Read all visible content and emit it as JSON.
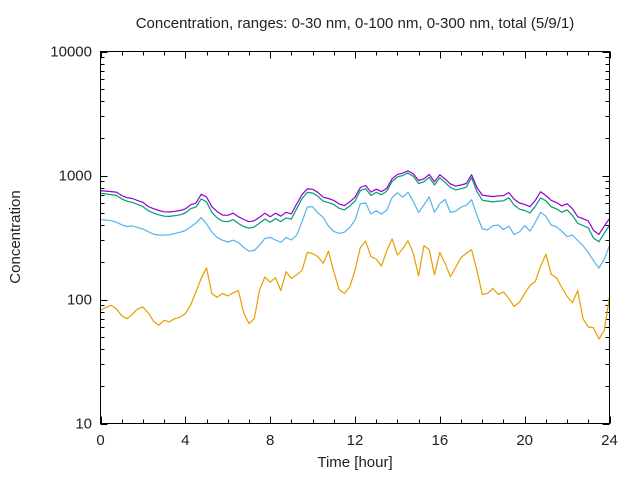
{
  "chart_data": {
    "type": "line",
    "title": "Concentration, ranges: 0-30 nm, 0-100 nm, 0-300 nm, total (5/9/1)",
    "xlabel": "Time [hour]",
    "ylabel": "Concentration",
    "xlim": [
      0,
      24
    ],
    "ylim": [
      10,
      10000
    ],
    "y_scale": "log",
    "grid": false,
    "legend": "none",
    "x_ticks_major": [
      0,
      4,
      8,
      12,
      16,
      20,
      24
    ],
    "x_minor_step": 1,
    "y_ticks_major": [
      10,
      100,
      1000,
      10000
    ],
    "x_start": 0,
    "x_step": 0.25,
    "series": [
      {
        "name": "0-30 nm",
        "color": "#e69f00",
        "values": [
          82,
          86,
          90,
          84,
          74,
          70,
          76,
          84,
          87,
          78,
          67,
          62,
          68,
          66,
          70,
          72,
          77,
          90,
          115,
          148,
          180,
          112,
          104,
          112,
          107,
          113,
          118,
          78,
          64,
          70,
          120,
          152,
          138,
          150,
          118,
          168,
          148,
          158,
          172,
          240,
          235,
          222,
          196,
          245,
          168,
          120,
          112,
          126,
          172,
          262,
          296,
          222,
          212,
          186,
          248,
          308,
          228,
          256,
          298,
          235,
          155,
          272,
          252,
          158,
          240,
          196,
          153,
          182,
          218,
          236,
          252,
          172,
          110,
          112,
          123,
          110,
          115,
          102,
          88,
          95,
          112,
          130,
          140,
          185,
          232,
          160,
          150,
          125,
          106,
          94,
          118,
          70,
          60,
          59,
          48,
          56,
          105
        ]
      },
      {
        "name": "0-100 nm",
        "color": "#56b4e9",
        "values": [
          440,
          438,
          432,
          420,
          400,
          388,
          393,
          380,
          370,
          352,
          337,
          331,
          330,
          333,
          340,
          348,
          360,
          385,
          413,
          458,
          408,
          350,
          316,
          301,
          291,
          301,
          288,
          263,
          245,
          249,
          274,
          311,
          317,
          302,
          289,
          317,
          302,
          331,
          423,
          556,
          560,
          498,
          460,
          390,
          354,
          341,
          349,
          381,
          436,
          592,
          600,
          489,
          519,
          489,
          526,
          662,
          726,
          668,
          733,
          618,
          503,
          577,
          672,
          505,
          592,
          641,
          503,
          516,
          556,
          574,
          638,
          478,
          371,
          364,
          394,
          399,
          367,
          391,
          334,
          351,
          394,
          356,
          419,
          505,
          470,
          399,
          386,
          355,
          321,
          331,
          299,
          271,
          239,
          205,
          179,
          211,
          272
        ]
      },
      {
        "name": "0-300 nm",
        "color": "#009e73",
        "values": [
          718,
          710,
          700,
          690,
          648,
          620,
          608,
          585,
          562,
          520,
          498,
          482,
          470,
          468,
          474,
          482,
          498,
          540,
          556,
          648,
          612,
          505,
          455,
          428,
          424,
          442,
          410,
          388,
          376,
          384,
          414,
          446,
          420,
          450,
          425,
          455,
          445,
          540,
          650,
          730,
          722,
          680,
          620,
          605,
          582,
          545,
          528,
          568,
          622,
          755,
          782,
          690,
          730,
          700,
          748,
          895,
          975,
          1000,
          1045,
          985,
          862,
          890,
          968,
          838,
          960,
          880,
          800,
          765,
          782,
          805,
          960,
          742,
          632,
          622,
          612,
          622,
          625,
          662,
          578,
          535,
          522,
          498,
          565,
          660,
          625,
          560,
          538,
          505,
          528,
          478,
          412,
          395,
          378,
          312,
          292,
          342,
          395
        ]
      },
      {
        "name": "total",
        "color": "#9400d3",
        "values": [
          755,
          748,
          742,
          735,
          690,
          662,
          652,
          628,
          608,
          562,
          540,
          522,
          510,
          508,
          514,
          522,
          538,
          580,
          598,
          705,
          672,
          560,
          512,
          480,
          478,
          497,
          465,
          442,
          424,
          432,
          460,
          497,
          465,
          497,
          470,
          505,
          490,
          590,
          700,
          780,
          775,
          730,
          668,
          652,
          630,
          590,
          572,
          612,
          668,
          800,
          830,
          735,
          775,
          742,
          790,
          940,
          1020,
          1045,
          1090,
          1032,
          912,
          940,
          1020,
          890,
          1015,
          935,
          855,
          822,
          838,
          862,
          1015,
          800,
          695,
          685,
          676,
          686,
          688,
          728,
          645,
          600,
          585,
          560,
          630,
          740,
          690,
          630,
          605,
          570,
          592,
          540,
          465,
          448,
          430,
          360,
          335,
          390,
          450
        ]
      }
    ]
  },
  "axis_style": {
    "line_color": "#000000",
    "text_color": "#222222"
  }
}
